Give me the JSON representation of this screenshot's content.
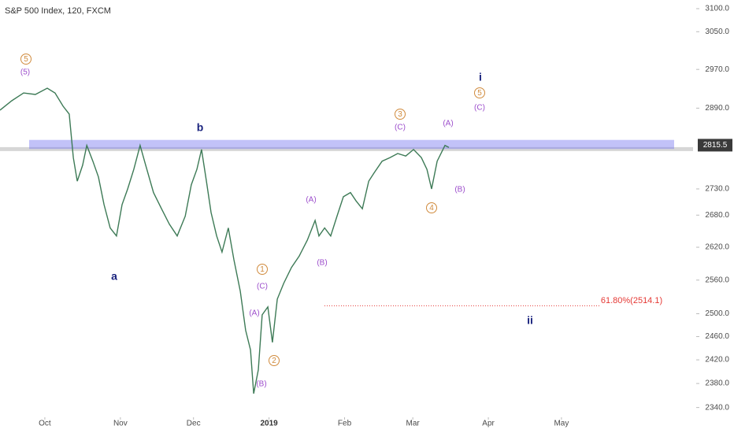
{
  "chart_data": {
    "type": "line",
    "title": "S&P 500 Index, 120, FXCM",
    "color": "#3d7a56",
    "log_scale": true,
    "x": [
      11.6,
      16.4,
      21.3,
      26.1,
      31.0,
      34.2,
      37.5,
      40.0,
      41.7,
      43.3,
      45.5,
      47.2,
      49.7,
      52.0,
      54.3,
      56.8,
      59.4,
      61.7,
      64.0,
      66.5,
      69.1,
      71.4,
      74.6,
      77.9,
      81.1,
      84.3,
      87.6,
      90.1,
      92.4,
      94.3,
      96.3,
      98.2,
      100.5,
      102.7,
      105.3,
      107.6,
      110.2,
      112.4,
      114.4,
      115.7,
      117.6,
      119.2,
      121.5,
      123.4,
      125.4,
      128.0,
      131.2,
      134.4,
      137.7,
      140.9,
      142.5,
      144.8,
      147.3,
      149.9,
      152.5,
      155.4,
      157.7,
      160.3,
      162.9,
      165.1,
      168.4,
      171.6,
      174.8,
      178.1,
      181.3,
      184.5,
      186.8,
      188.7,
      191.0,
      194.2,
      195.8
    ],
    "values": [
      2886,
      2905,
      2921,
      2918,
      2931,
      2921,
      2894,
      2878,
      2791,
      2745,
      2776,
      2815,
      2784,
      2753,
      2700,
      2656,
      2641,
      2700,
      2730,
      2768,
      2815,
      2776,
      2723,
      2692,
      2663,
      2641,
      2678,
      2738,
      2768,
      2807,
      2745,
      2685,
      2641,
      2611,
      2656,
      2597,
      2540,
      2471,
      2437,
      2363,
      2403,
      2498,
      2512,
      2450,
      2526,
      2554,
      2583,
      2604,
      2633,
      2670,
      2641,
      2656,
      2641,
      2678,
      2715,
      2723,
      2707,
      2692,
      2745,
      2761,
      2784,
      2791,
      2799,
      2794,
      2807,
      2791,
      2768,
      2730,
      2784,
      2815,
      2811
    ],
    "xlim": [
      11.6,
      296
    ],
    "xticks": [
      {
        "value": 30,
        "label": "Oct"
      },
      {
        "value": 61,
        "label": "Nov"
      },
      {
        "value": 91,
        "label": "Dec"
      },
      {
        "value": 122,
        "label": "2019"
      },
      {
        "value": 153,
        "label": "Feb"
      },
      {
        "value": 181,
        "label": "Mar"
      },
      {
        "value": 212,
        "label": "Apr"
      },
      {
        "value": 242,
        "label": "May"
      }
    ],
    "ylim": [
      2324,
      3119
    ],
    "yticks": [
      {
        "value": 3100,
        "label": "3100.0"
      },
      {
        "value": 3050,
        "label": "3050.0"
      },
      {
        "value": 2970,
        "label": "2970.0"
      },
      {
        "value": 2890,
        "label": "2890.0"
      },
      {
        "value": 2730,
        "label": "2730.0"
      },
      {
        "value": 2680,
        "label": "2680.0"
      },
      {
        "value": 2620,
        "label": "2620.0"
      },
      {
        "value": 2560,
        "label": "2560.0"
      },
      {
        "value": 2500,
        "label": "2500.0"
      },
      {
        "value": 2460,
        "label": "2460.0"
      },
      {
        "value": 2420,
        "label": "2420.0"
      },
      {
        "value": 2380,
        "label": "2380.0"
      },
      {
        "value": 2340,
        "label": "2340.0"
      }
    ],
    "last_price": 2815.5,
    "resistance_zone": [
      2808,
      2826
    ],
    "fib_level": 2514.1,
    "annotations": [
      "5",
      "(5)",
      "b",
      "a",
      "1",
      "(C)",
      "(A)",
      "(B)",
      "2",
      "(A)",
      "(B)",
      "3",
      "(C)",
      "4",
      "(A)",
      "(B)",
      "i",
      "5",
      "(C)",
      "ii",
      "61.80%(2514.1)"
    ]
  }
}
